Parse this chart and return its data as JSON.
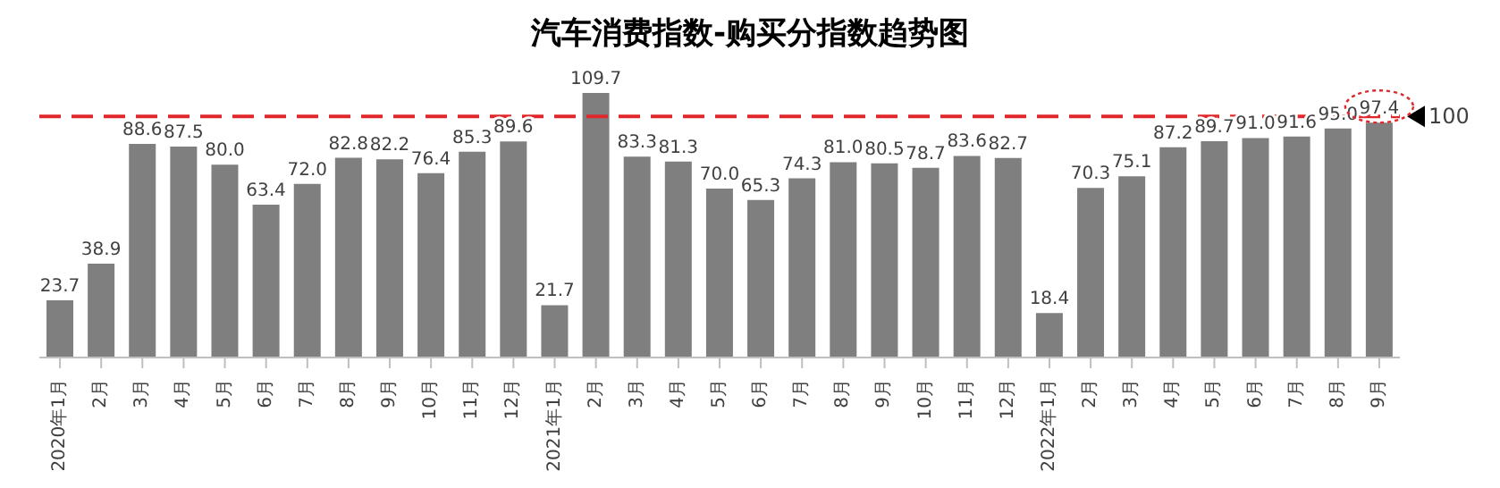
{
  "chart_data": {
    "type": "bar",
    "title": "汽车消费指数-购买分指数趋势图",
    "categories": [
      "2020年1月",
      "2月",
      "3月",
      "4月",
      "5月",
      "6月",
      "7月",
      "8月",
      "9月",
      "10月",
      "11月",
      "12月",
      "2021年1月",
      "2月",
      "3月",
      "4月",
      "5月",
      "6月",
      "7月",
      "8月",
      "9月",
      "10月",
      "11月",
      "12月",
      "2022年1月",
      "2月",
      "3月",
      "4月",
      "5月",
      "6月",
      "7月",
      "8月",
      "9月"
    ],
    "values": [
      23.7,
      38.9,
      88.6,
      87.5,
      80.0,
      63.4,
      72.0,
      82.8,
      82.2,
      76.4,
      85.3,
      89.6,
      21.7,
      109.7,
      83.3,
      81.3,
      70.0,
      65.3,
      74.3,
      81.0,
      80.5,
      78.7,
      83.6,
      82.7,
      18.4,
      70.3,
      75.1,
      87.2,
      89.7,
      91.0,
      91.6,
      95.0,
      97.4
    ],
    "value_labels": [
      "23.7",
      "38.9",
      "88.6",
      "87.5",
      "80.0",
      "63.4",
      "72.0",
      "82.8",
      "82.2",
      "76.4",
      "85.3",
      "89.6",
      "21.7",
      "109.7",
      "83.3",
      "81.3",
      "70.0",
      "65.3",
      "74.3",
      "81.0",
      "80.5",
      "78.7",
      "83.6",
      "82.7",
      "18.4",
      "70.3",
      "75.1",
      "87.2",
      "89.7",
      "91.0",
      "91.6",
      "95.0",
      "97.4"
    ],
    "color": "#7f7f7f",
    "grid": false,
    "legend": false,
    "ref_lines": [
      {
        "axis": "y",
        "value": 100,
        "label": "100",
        "color": "#e0282c",
        "line_style": "dashed"
      }
    ]
  }
}
